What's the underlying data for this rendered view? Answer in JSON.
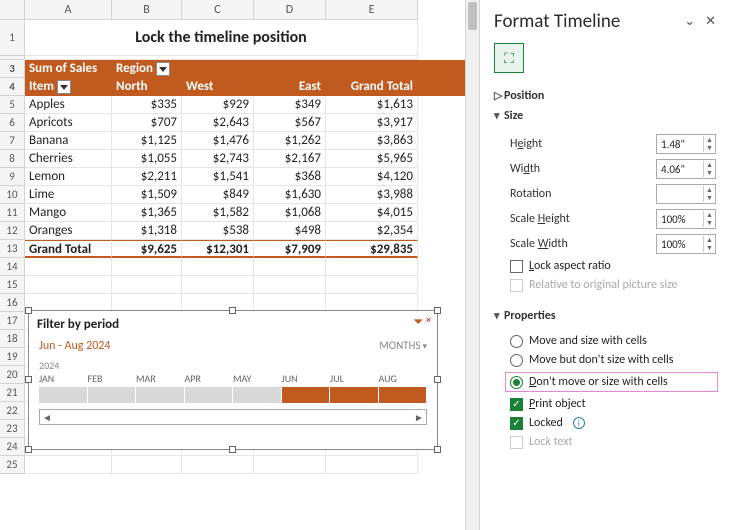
{
  "columns": [
    "A",
    "B",
    "C",
    "D",
    "E"
  ],
  "title": "Lock the timeline position",
  "pivot": {
    "corner_label": "Sum of Sales",
    "col_field": "Region",
    "row_field": "Item",
    "col_headers": [
      "North",
      "West",
      "East",
      "Grand Total"
    ],
    "rows": [
      {
        "n": 5,
        "item": "Apples",
        "vals": [
          "$335",
          "$929",
          "$349",
          "$1,613"
        ]
      },
      {
        "n": 6,
        "item": "Apricots",
        "vals": [
          "$707",
          "$2,643",
          "$567",
          "$3,917"
        ]
      },
      {
        "n": 7,
        "item": "Banana",
        "vals": [
          "$1,125",
          "$1,476",
          "$1,262",
          "$3,863"
        ]
      },
      {
        "n": 8,
        "item": "Cherries",
        "vals": [
          "$1,055",
          "$2,743",
          "$2,167",
          "$5,965"
        ]
      },
      {
        "n": 9,
        "item": "Lemon",
        "vals": [
          "$2,211",
          "$1,541",
          "$368",
          "$4,120"
        ]
      },
      {
        "n": 10,
        "item": "Lime",
        "vals": [
          "$1,509",
          "$849",
          "$1,630",
          "$3,988"
        ]
      },
      {
        "n": 11,
        "item": "Mango",
        "vals": [
          "$1,365",
          "$1,582",
          "$1,068",
          "$4,015"
        ]
      },
      {
        "n": 12,
        "item": "Oranges",
        "vals": [
          "$1,318",
          "$538",
          "$498",
          "$2,354"
        ]
      }
    ],
    "grand_total_label": "Grand Total",
    "grand_total": [
      "$9,625",
      "$12,301",
      "$7,909",
      "$29,835"
    ]
  },
  "timeline": {
    "title": "Filter by period",
    "range": "Jun - Aug 2024",
    "level": "MONTHS",
    "year": "2024",
    "months": [
      "JAN",
      "FEB",
      "MAR",
      "APR",
      "MAY",
      "JUN",
      "JUL",
      "AUG"
    ],
    "selected": [
      false,
      false,
      false,
      false,
      false,
      true,
      true,
      true
    ]
  },
  "panel": {
    "title": "Format Timeline",
    "sec_position": "Position",
    "sec_size": "Size",
    "height_label": "Height",
    "height_val": "1.48\"",
    "width_label": "Width",
    "width_val": "4.06\"",
    "rotation_label": "Rotation",
    "rotation_val": "",
    "scale_h_label": "Scale Height",
    "scale_h_val": "100%",
    "scale_w_label": "Scale Width",
    "scale_w_val": "100%",
    "lock_aspect": "Lock aspect ratio",
    "rel_orig": "Relative to original picture size",
    "sec_props": "Properties",
    "opt_move_size": "Move and size with cells",
    "opt_move_nosize": "Move but don't size with cells",
    "opt_dont_move": "Don't move or size with cells",
    "print_obj": "Print object",
    "locked": "Locked",
    "lock_text": "Lock text"
  }
}
